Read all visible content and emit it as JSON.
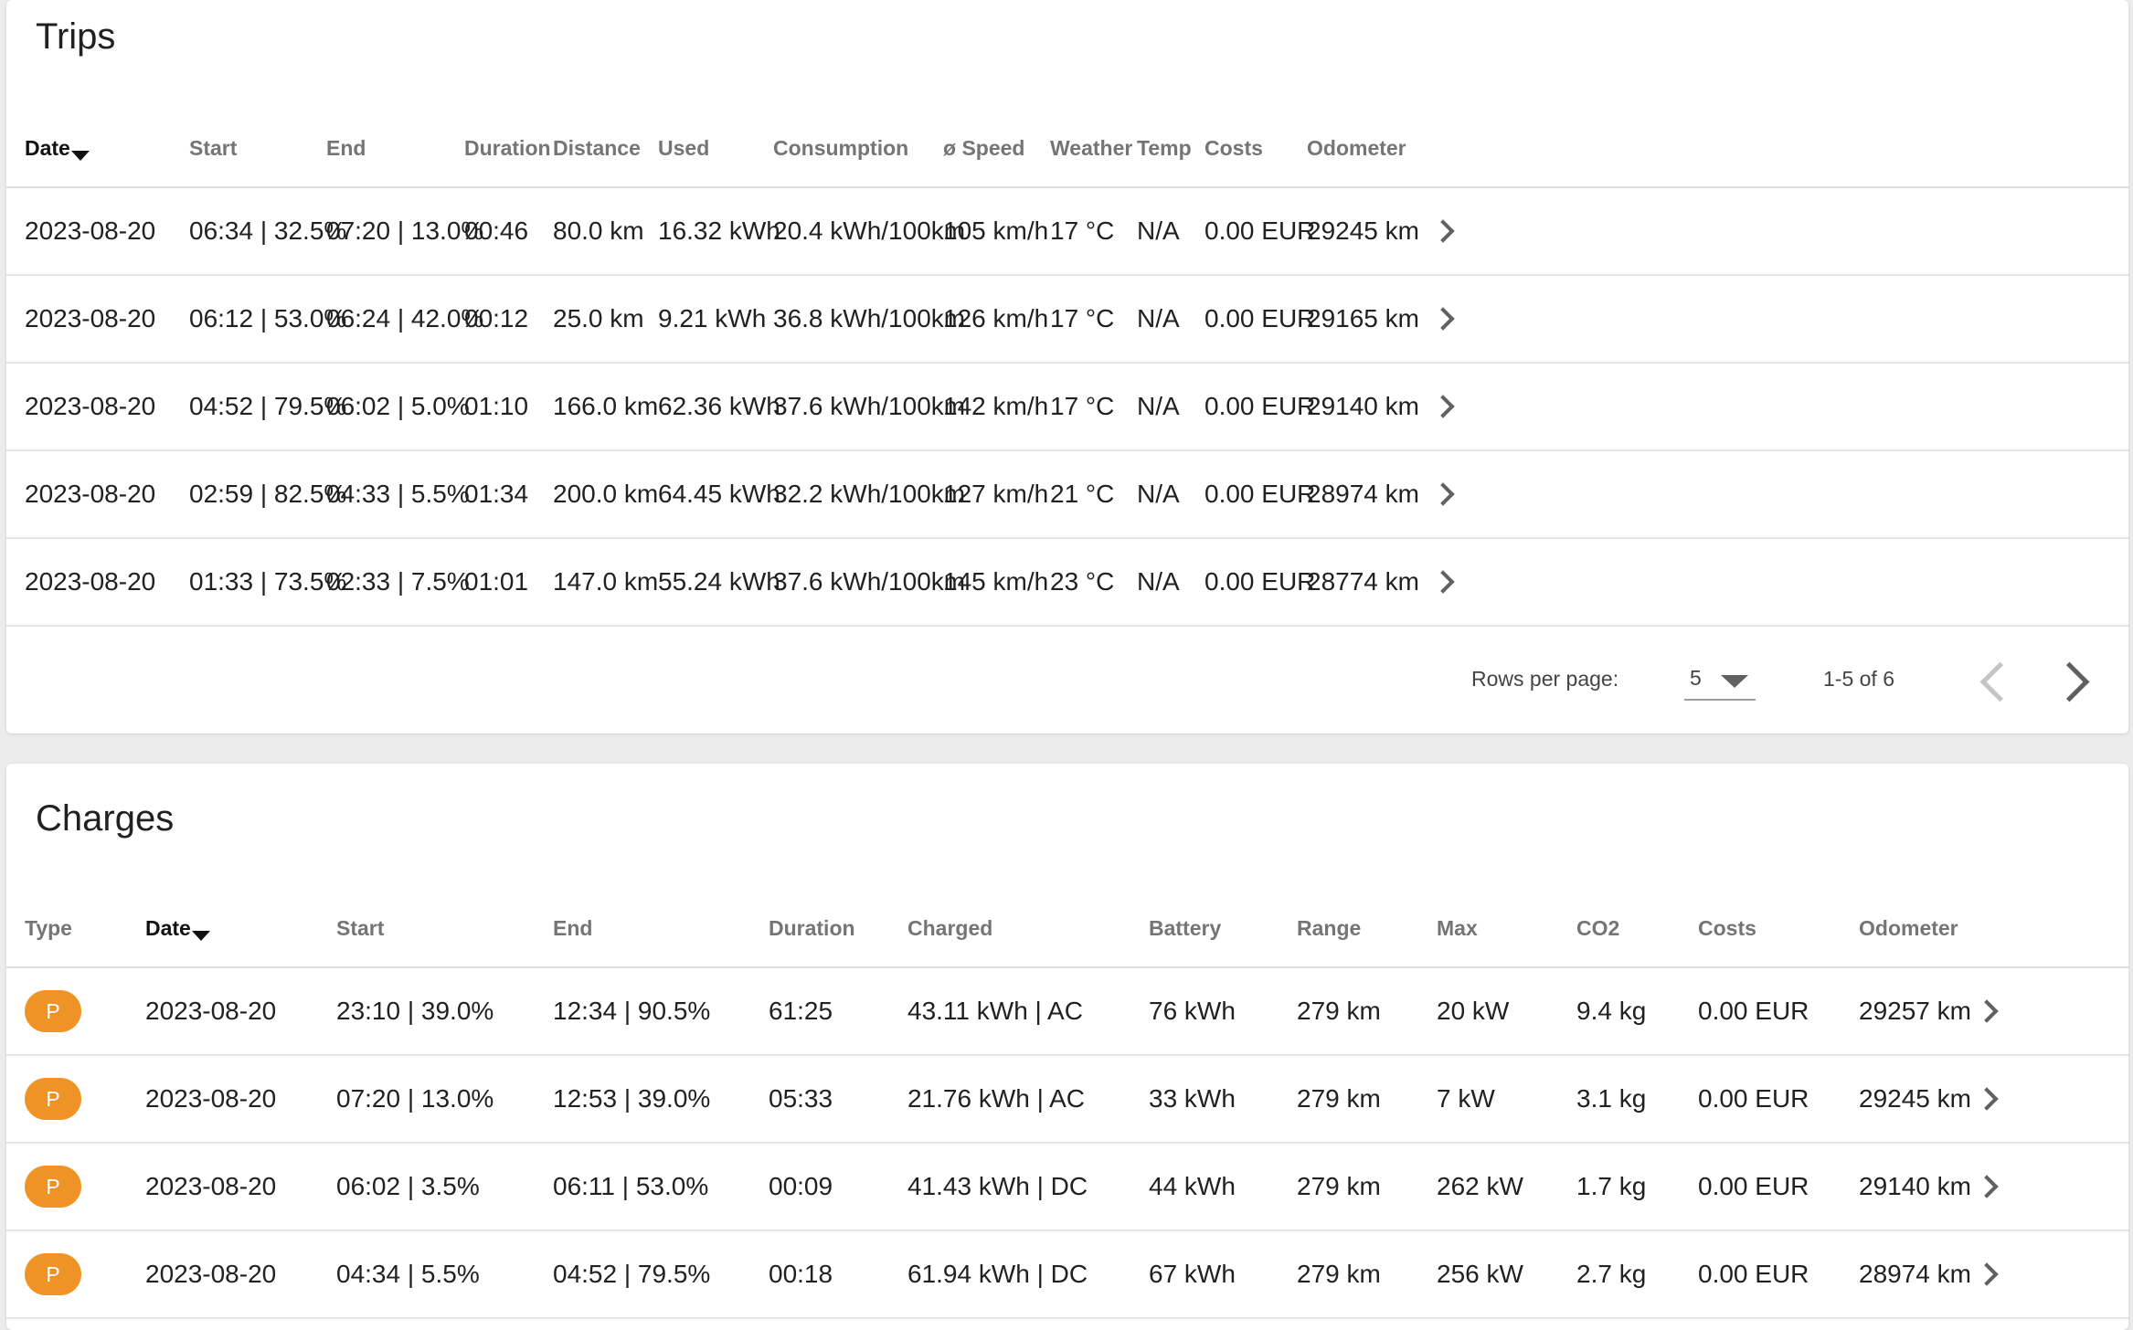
{
  "trips": {
    "title": "Trips",
    "columns": [
      "Date",
      "Start",
      "End",
      "Duration",
      "Distance",
      "Used",
      "Consumption",
      "ø Speed",
      "Weather",
      "Temp",
      "Costs",
      "Odometer"
    ],
    "sorted_column": "Date",
    "rows": [
      [
        "2023-08-20",
        "06:34 | 32.5%",
        "07:20 | 13.0%",
        "00:46",
        "80.0 km",
        "16.32 kWh",
        "20.4 kWh/100km",
        "105 km/h",
        "17 °C",
        "N/A",
        "0.00 EUR",
        "29245 km"
      ],
      [
        "2023-08-20",
        "06:12 | 53.0%",
        "06:24 | 42.0%",
        "00:12",
        "25.0 km",
        "9.21 kWh",
        "36.8 kWh/100km",
        "126 km/h",
        "17 °C",
        "N/A",
        "0.00 EUR",
        "29165 km"
      ],
      [
        "2023-08-20",
        "04:52 | 79.5%",
        "06:02 | 5.0%",
        "01:10",
        "166.0 km",
        "62.36 kWh",
        "37.6 kWh/100km",
        "142 km/h",
        "17 °C",
        "N/A",
        "0.00 EUR",
        "29140 km"
      ],
      [
        "2023-08-20",
        "02:59 | 82.5%",
        "04:33 | 5.5%",
        "01:34",
        "200.0 km",
        "64.45 kWh",
        "32.2 kWh/100km",
        "127 km/h",
        "21 °C",
        "N/A",
        "0.00 EUR",
        "28974 km"
      ],
      [
        "2023-08-20",
        "01:33 | 73.5%",
        "02:33 | 7.5%",
        "01:01",
        "147.0 km",
        "55.24 kWh",
        "37.6 kWh/100km",
        "145 km/h",
        "23 °C",
        "N/A",
        "0.00 EUR",
        "28774 km"
      ]
    ],
    "pagination": {
      "rows_per_page_label": "Rows per page:",
      "rows_per_page_value": "5",
      "range_text": "1-5 of 6"
    }
  },
  "charges": {
    "title": "Charges",
    "columns": [
      "Type",
      "Date",
      "Start",
      "End",
      "Duration",
      "Charged",
      "Battery",
      "Range",
      "Max",
      "CO2",
      "Costs",
      "Odometer"
    ],
    "sorted_column": "Date",
    "rows": [
      [
        "P",
        "2023-08-20",
        "23:10 | 39.0%",
        "12:34 | 90.5%",
        "61:25",
        "43.11 kWh | AC",
        "76 kWh",
        "279 km",
        "20 kW",
        "9.4 kg",
        "0.00 EUR",
        "29257 km"
      ],
      [
        "P",
        "2023-08-20",
        "07:20 | 13.0%",
        "12:53 | 39.0%",
        "05:33",
        "21.76 kWh | AC",
        "33 kWh",
        "279 km",
        "7 kW",
        "3.1 kg",
        "0.00 EUR",
        "29245 km"
      ],
      [
        "P",
        "2023-08-20",
        "06:02 | 3.5%",
        "06:11 | 53.0%",
        "00:09",
        "41.43 kWh | DC",
        "44 kWh",
        "279 km",
        "262 kW",
        "1.7 kg",
        "0.00 EUR",
        "29140 km"
      ],
      [
        "P",
        "2023-08-20",
        "04:34 | 5.5%",
        "04:52 | 79.5%",
        "00:18",
        "61.94 kWh | DC",
        "67 kWh",
        "279 km",
        "256 kW",
        "2.7 kg",
        "0.00 EUR",
        "28974 km"
      ]
    ]
  },
  "colors": {
    "type_badge": "#ef9326",
    "page_background": "#ececed",
    "card_background": "#ffffff"
  },
  "icons": {
    "sort": "sort-descending-icon",
    "row_open": "chevron-right-icon",
    "rows_dropdown": "caret-down-icon",
    "prev_page": "chevron-left-icon",
    "next_page": "chevron-right-icon"
  }
}
